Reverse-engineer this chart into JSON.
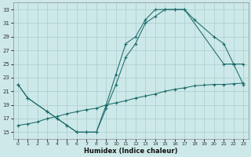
{
  "xlabel": "Humidex (Indice chaleur)",
  "bg_color": "#cde8e8",
  "grid_color": "#aacccc",
  "line_color": "#1a6b6b",
  "xlim": [
    -0.5,
    23.5
  ],
  "ylim": [
    14.0,
    34.0
  ],
  "xticks": [
    0,
    1,
    2,
    3,
    4,
    5,
    6,
    7,
    8,
    9,
    10,
    11,
    12,
    13,
    14,
    15,
    16,
    17,
    18,
    19,
    20,
    21,
    22,
    23
  ],
  "yticks": [
    15,
    17,
    19,
    21,
    23,
    25,
    27,
    29,
    31,
    33
  ],
  "curve1_x": [
    0,
    1,
    3,
    4,
    5,
    6,
    7,
    8,
    9,
    10,
    11,
    12,
    13,
    14,
    15,
    16,
    17,
    21,
    22,
    23
  ],
  "curve1_y": [
    22,
    20,
    18,
    17,
    16,
    15,
    15,
    15,
    19,
    23.5,
    28,
    29,
    31.5,
    33,
    33,
    33,
    33,
    25,
    25,
    22
  ],
  "curve2_x": [
    0,
    1,
    3,
    4,
    5,
    6,
    7,
    8,
    9,
    10,
    11,
    12,
    13,
    14,
    15,
    16,
    17,
    18,
    20,
    21,
    22,
    23
  ],
  "curve2_y": [
    22,
    20,
    18,
    17,
    16,
    15,
    15,
    15,
    18.5,
    22,
    26,
    28,
    31,
    32,
    33,
    33,
    33,
    31.5,
    29,
    28,
    25,
    25
  ],
  "curve3_x": [
    0,
    1,
    2,
    3,
    4,
    5,
    6,
    7,
    8,
    9,
    10,
    11,
    12,
    13,
    14,
    15,
    16,
    17,
    18,
    19,
    20,
    21,
    22,
    23
  ],
  "curve3_y": [
    16,
    16.2,
    16.5,
    17,
    17.3,
    17.7,
    18,
    18.3,
    18.5,
    19,
    19.3,
    19.6,
    20,
    20.3,
    20.6,
    21,
    21.3,
    21.5,
    21.8,
    21.9,
    22,
    22,
    22.1,
    22.2
  ]
}
